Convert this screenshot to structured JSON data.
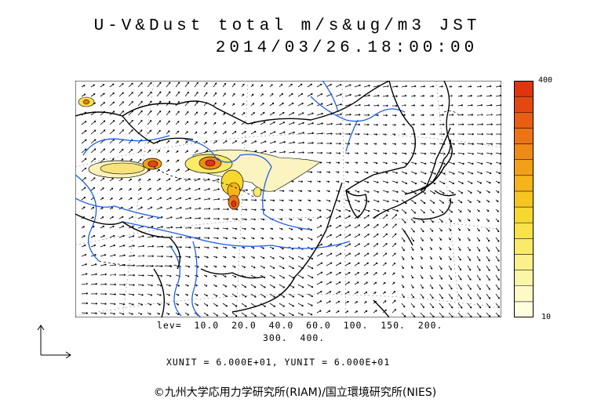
{
  "title": {
    "line1": "U-V&Dust total m/s&ug/m3 JST",
    "line2": "2014/03/26.18:00:00"
  },
  "colorbar": {
    "max_label": "400",
    "min_label": "10",
    "colors": [
      "#ffffe0",
      "#fdfac8",
      "#fbf5a8",
      "#fbf08a",
      "#f9ea6a",
      "#f8e24a",
      "#f7d830",
      "#f6c620",
      "#f4b41a",
      "#f2a018",
      "#ef8a16",
      "#ec7414",
      "#e85e12",
      "#e44810",
      "#e0350e"
    ]
  },
  "legend": {
    "levels_line1": "lev=  10.0  20.0  40.0  60.0  100.  150.  200.",
    "levels_line2": "300.  400.",
    "unit_line": "XUNIT = 6.000E+01, YUNIT = 6.000E+01"
  },
  "credit": "©九州大学応用力学研究所(RIAM)/国立環境研究所(NIES)",
  "colors": {
    "river": "#1f5fe8",
    "coast": "#000000",
    "dust_light": "#fbf4c0"
  }
}
